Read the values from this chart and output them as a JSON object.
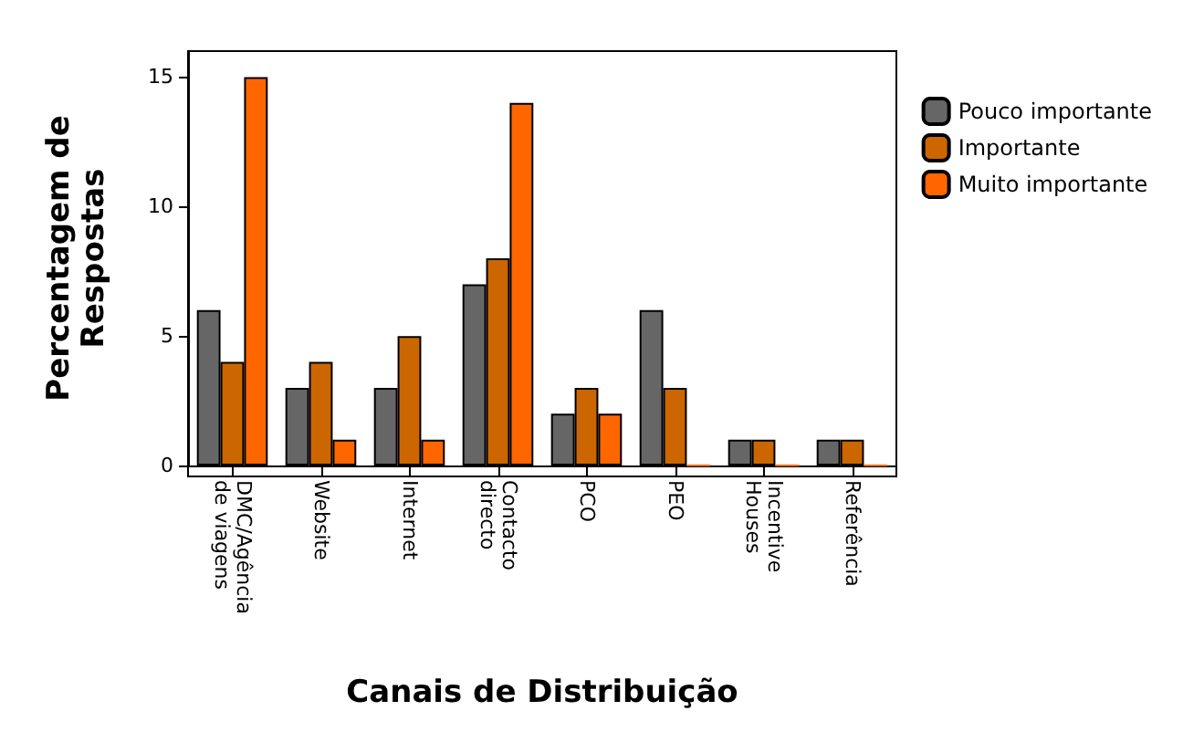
{
  "chart_data": {
    "type": "bar",
    "xlabel": "Canais de Distribuição",
    "ylabel": "Percentagem de\nRespostas",
    "categories": [
      "DMC/Agência\nde viagens",
      "Website",
      "Internet",
      "Contacto\ndirecto",
      "PCO",
      "PEO",
      "Incentive\nHouses",
      "Referência"
    ],
    "series": [
      {
        "name": "Pouco importante",
        "color": "#666666",
        "values": [
          6,
          3,
          3,
          7,
          2,
          6,
          1,
          1
        ]
      },
      {
        "name": "Importante",
        "color": "#cc6600",
        "values": [
          4,
          4,
          5,
          8,
          3,
          3,
          1,
          1
        ]
      },
      {
        "name": "Muito importante",
        "color": "#ff6600",
        "values": [
          15,
          1,
          1,
          14,
          2,
          0,
          0,
          0
        ]
      }
    ],
    "ylim": [
      0,
      16
    ],
    "yticks": [
      0,
      5,
      10,
      15
    ],
    "grid": false,
    "legend": "top right"
  }
}
